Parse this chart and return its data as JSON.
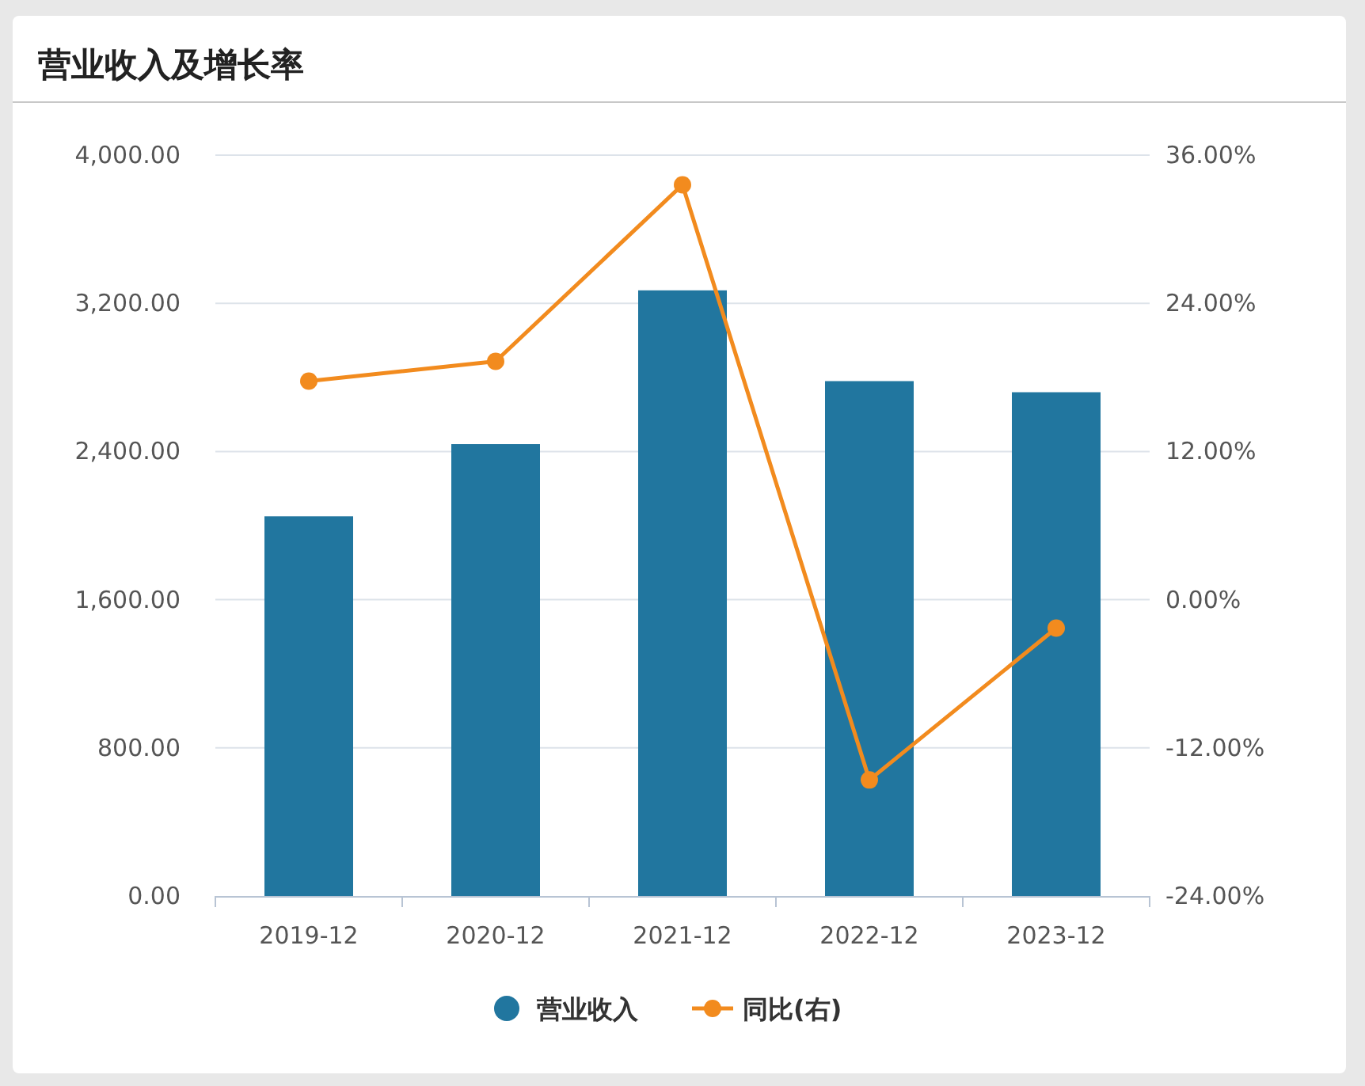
{
  "chart_data": {
    "type": "bar",
    "title": "营业收入及增长率",
    "categories": [
      "2019-12",
      "2020-12",
      "2021-12",
      "2022-12",
      "2023-12"
    ],
    "series": [
      {
        "name": "营业收入",
        "color": "#21769f",
        "values": [
          2050,
          2440,
          3270,
          2780,
          2720
        ]
      },
      {
        "name": "同比(右)",
        "type": "line",
        "axis": "y2",
        "color": "#f28b1e",
        "values": [
          17.7,
          19.3,
          33.6,
          -14.6,
          -2.3
        ]
      }
    ],
    "ylim": [
      0,
      4000
    ],
    "yticks": [
      {
        "value": 0,
        "label": "0.00"
      },
      {
        "value": 800,
        "label": "800.00"
      },
      {
        "value": 1600,
        "label": "1,600.00"
      },
      {
        "value": 2400,
        "label": "2,400.00"
      },
      {
        "value": 3200,
        "label": "3,200.00"
      },
      {
        "value": 4000,
        "label": "4,000.00"
      }
    ],
    "y2lim": [
      -24,
      36
    ],
    "y2ticks": [
      {
        "value": -24,
        "label": "-24.00%"
      },
      {
        "value": -12,
        "label": "-12.00%"
      },
      {
        "value": 0,
        "label": "0.00%"
      },
      {
        "value": 12,
        "label": "12.00%"
      },
      {
        "value": 24,
        "label": "24.00%"
      },
      {
        "value": 36,
        "label": "36.00%"
      }
    ],
    "grid": "y",
    "legend": "bottom",
    "marker": "circle"
  }
}
